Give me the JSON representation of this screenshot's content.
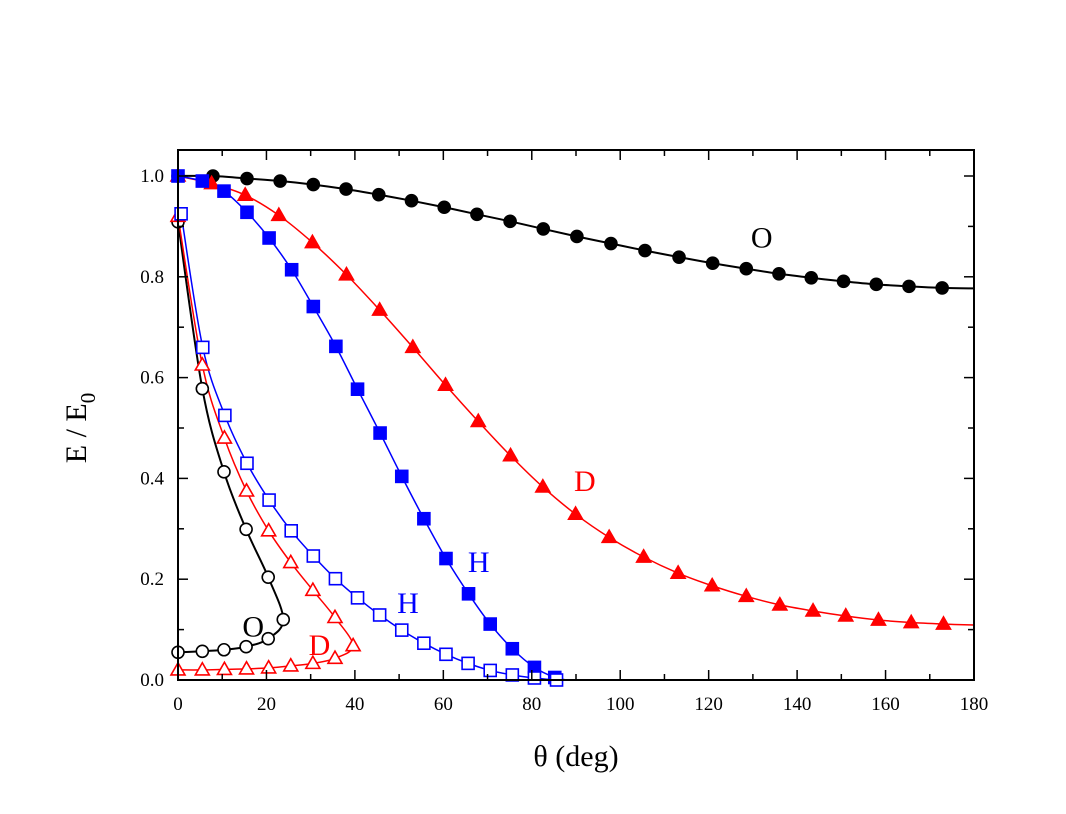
{
  "chart_data": {
    "type": "scatter",
    "xlabel": "θ (deg)",
    "ylabel": {
      "main": "E / E",
      "subscript": "0"
    },
    "xlim": [
      0,
      180
    ],
    "ylim": [
      0,
      1.05
    ],
    "xticks": [
      0,
      20,
      40,
      60,
      80,
      100,
      120,
      140,
      160,
      180
    ],
    "yticks": [
      0.0,
      0.2,
      0.4,
      0.6,
      0.8,
      1.0
    ],
    "ytick_labels": [
      "0.0",
      "0.2",
      "0.4",
      "0.6",
      "0.8",
      "1.0"
    ],
    "legend": "none",
    "series": [
      {
        "name": "O-upper",
        "label": "O",
        "color": "#000000",
        "marker": "circle",
        "filled": true,
        "x": [
          0,
          7.9,
          15.6,
          23.1,
          30.6,
          38,
          45.4,
          52.8,
          60.2,
          67.6,
          75.1,
          82.6,
          90.2,
          97.9,
          105.6,
          113.3,
          120.9,
          128.5,
          135.9,
          143.2,
          150.5,
          157.9,
          165.3,
          172.8
        ],
        "y": [
          1.0,
          1.0,
          0.995,
          0.99,
          0.983,
          0.974,
          0.963,
          0.951,
          0.938,
          0.924,
          0.91,
          0.895,
          0.88,
          0.866,
          0.852,
          0.839,
          0.827,
          0.816,
          0.806,
          0.798,
          0.791,
          0.785,
          0.781,
          0.778
        ],
        "curve_end": [
          180,
          0.777
        ]
      },
      {
        "name": "D-upper",
        "label": "D",
        "color": "#ff0000",
        "marker": "triangle",
        "filled": true,
        "x": [
          0,
          7.6,
          15.2,
          22.8,
          30.4,
          38.1,
          45.6,
          53.1,
          60.5,
          67.9,
          75.2,
          82.5,
          89.9,
          97.5,
          105.3,
          113.1,
          120.8,
          128.5,
          136.1,
          143.6,
          151,
          158.4,
          165.8,
          173.1
        ],
        "y": [
          1.0,
          0.985,
          0.962,
          0.922,
          0.868,
          0.804,
          0.734,
          0.66,
          0.585,
          0.513,
          0.445,
          0.383,
          0.329,
          0.283,
          0.244,
          0.212,
          0.187,
          0.166,
          0.149,
          0.137,
          0.127,
          0.119,
          0.114,
          0.111
        ],
        "curve_end": [
          180,
          0.109
        ]
      },
      {
        "name": "H-upper",
        "label": "H",
        "color": "#0000ff",
        "marker": "square",
        "filled": true,
        "x": [
          0,
          5.5,
          10.4,
          15.6,
          20.6,
          25.7,
          30.6,
          35.7,
          40.6,
          45.7,
          50.6,
          55.6,
          60.6,
          65.7,
          70.6,
          75.6,
          80.6,
          85.2
        ],
        "y": [
          1.0,
          0.99,
          0.97,
          0.928,
          0.877,
          0.814,
          0.741,
          0.662,
          0.577,
          0.49,
          0.404,
          0.32,
          0.241,
          0.171,
          0.111,
          0.062,
          0.025,
          0.005
        ],
        "curve_end": [
          88,
          0.0
        ]
      },
      {
        "name": "O-lower",
        "label": "O",
        "color": "#000000",
        "marker": "circle",
        "filled": false,
        "x": [
          0,
          5.5,
          10.4,
          15.4,
          20.4,
          23.8,
          20.4,
          15.4,
          10.4,
          5.5,
          0
        ],
        "y": [
          0.909,
          0.578,
          0.413,
          0.299,
          0.204,
          0.12,
          0.082,
          0.066,
          0.06,
          0.057,
          0.055
        ]
      },
      {
        "name": "D-lower",
        "label": "D",
        "color": "#ff0000",
        "marker": "triangle",
        "filled": false,
        "x": [
          0,
          5.5,
          10.5,
          15.5,
          20.5,
          25.5,
          30.5,
          35.5,
          39.6,
          35.5,
          30.5,
          25.5,
          20.5,
          15.5,
          10.5,
          5.5,
          0
        ],
        "y": [
          0.92,
          0.625,
          0.48,
          0.375,
          0.296,
          0.233,
          0.178,
          0.124,
          0.068,
          0.043,
          0.033,
          0.028,
          0.024,
          0.022,
          0.021,
          0.02,
          0.02
        ]
      },
      {
        "name": "H-lower",
        "label": "H",
        "color": "#0000ff",
        "marker": "square",
        "filled": false,
        "x": [
          0.7,
          5.6,
          10.6,
          15.6,
          20.6,
          25.6,
          30.6,
          35.6,
          40.6,
          45.6,
          50.6,
          55.6,
          60.6,
          65.6,
          70.6,
          75.6,
          80.6,
          85.6
        ],
        "y": [
          0.925,
          0.66,
          0.525,
          0.43,
          0.357,
          0.296,
          0.246,
          0.201,
          0.163,
          0.129,
          0.099,
          0.073,
          0.051,
          0.033,
          0.019,
          0.01,
          0.004,
          0.0
        ],
        "curve_end": [
          87.5,
          0.0
        ]
      }
    ],
    "annotations": [
      {
        "name": "label-O-upper",
        "text": "O",
        "color": "#000000",
        "x": 132,
        "y": 0.872
      },
      {
        "name": "label-D-upper",
        "text": "D",
        "color": "#ff0000",
        "x": 92,
        "y": 0.389
      },
      {
        "name": "label-H-upper",
        "text": "H",
        "color": "#0000ff",
        "x": 68,
        "y": 0.228
      },
      {
        "name": "label-O-lower",
        "text": "O",
        "color": "#000000",
        "x": 17,
        "y": 0.1
      },
      {
        "name": "label-D-lower",
        "text": "D",
        "color": "#ff0000",
        "x": 32,
        "y": 0.063
      },
      {
        "name": "label-H-lower",
        "text": "H",
        "color": "#0000ff",
        "x": 52,
        "y": 0.147
      }
    ]
  }
}
